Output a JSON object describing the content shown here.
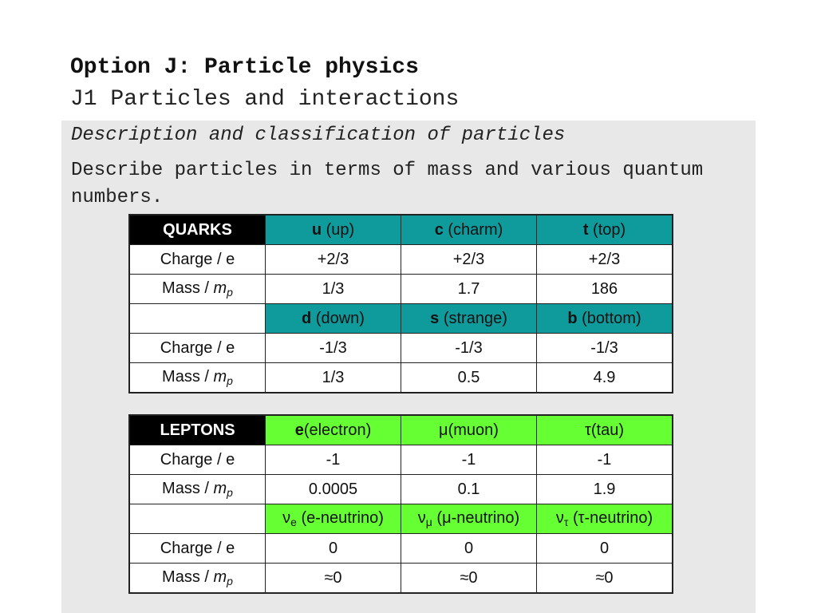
{
  "header": {
    "title": "Option J: Particle physics",
    "subtitle": "J1 Particles and interactions"
  },
  "panel": {
    "section_heading": "Description and classification of particles",
    "objective": "Describe particles in terms of mass and various quantum numbers."
  },
  "colors": {
    "quark_header": "#0f9a9c",
    "lepton_header": "#66ff33",
    "label_header": "#000000"
  },
  "quarks": {
    "header_label": "QUARKS",
    "row_labels": {
      "charge": "Charge / e",
      "mass_prefix": "Mass / ",
      "mass_var": "m",
      "mass_sub": "p"
    },
    "group1": {
      "particles": [
        {
          "symbol": "u",
          "name": " (up)"
        },
        {
          "symbol": "c",
          "name": " (charm)"
        },
        {
          "symbol": "t",
          "name": " (top)"
        }
      ],
      "charge": [
        "+2/3",
        "+2/3",
        "+2/3"
      ],
      "mass": [
        "1/3",
        "1.7",
        "186"
      ]
    },
    "group2": {
      "particles": [
        {
          "symbol": "d",
          "name": " (down)"
        },
        {
          "symbol": "s",
          "name": " (strange)"
        },
        {
          "symbol": "b",
          "name": " (bottom)"
        }
      ],
      "charge": [
        "-1/3",
        "-1/3",
        "-1/3"
      ],
      "mass": [
        "1/3",
        "0.5",
        "4.9"
      ]
    }
  },
  "leptons": {
    "header_label": "LEPTONS",
    "row_labels": {
      "charge": "Charge / e",
      "mass_prefix": "Mass / ",
      "mass_var": "m",
      "mass_sub": "p"
    },
    "group1": {
      "particles": [
        {
          "symbol": "e",
          "name": "(electron)"
        },
        {
          "symbol": "μ",
          "name": "(muon)"
        },
        {
          "symbol": "τ",
          "name": "(tau)"
        }
      ],
      "charge": [
        "-1",
        "-1",
        "-1"
      ],
      "mass": [
        "0.0005",
        "0.1",
        "1.9"
      ]
    },
    "group2": {
      "particles": [
        {
          "symbol": "ν",
          "sub": "e",
          "name": " (e-neutrino)"
        },
        {
          "symbol": "ν",
          "sub": "μ",
          "name": " (μ-neutrino)"
        },
        {
          "symbol": "ν",
          "sub": "τ",
          "name": " (τ-neutrino)"
        }
      ],
      "charge": [
        "0",
        "0",
        "0"
      ],
      "mass": [
        "≈0",
        "≈0",
        "≈0"
      ]
    }
  }
}
